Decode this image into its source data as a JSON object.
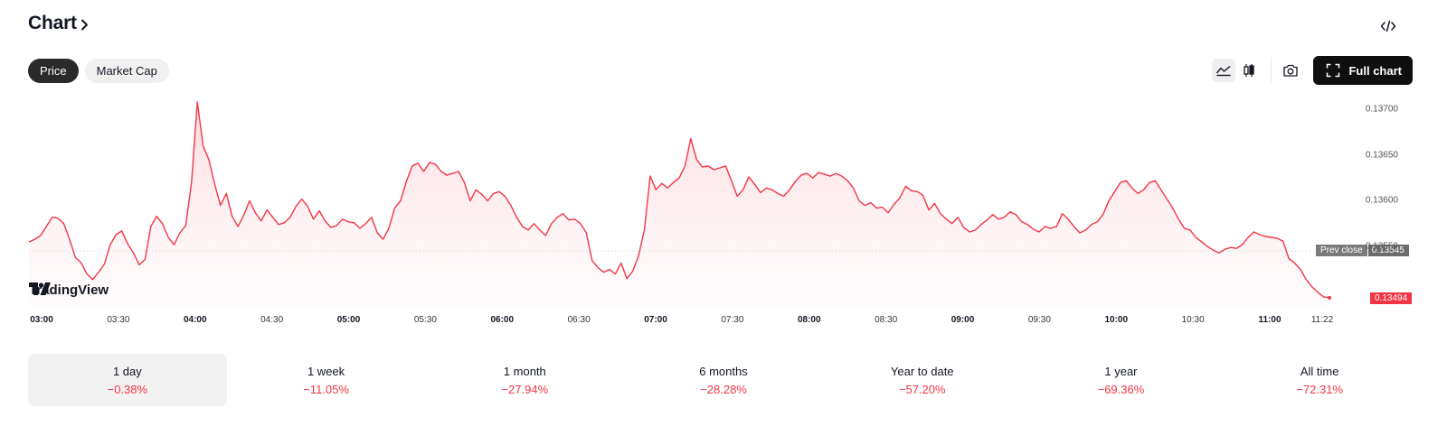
{
  "header": {
    "title": "Chart"
  },
  "tabs": [
    {
      "label": "Price",
      "active": true
    },
    {
      "label": "Market Cap",
      "active": false
    }
  ],
  "toolbar": {
    "full_chart_label": "Full chart",
    "icons": [
      "area-chart-icon",
      "candlestick-icon",
      "camera-icon",
      "fullscreen-icon",
      "embed-code-icon"
    ]
  },
  "colors": {
    "line": "#f23645",
    "fill_top": "#fdd6da",
    "accent_dark": "#0f0f0f",
    "negative": "#f23645"
  },
  "branding": {
    "logo_text": "TradingView"
  },
  "chart_data": {
    "type": "area",
    "y_ticks": [
      "0.13700",
      "0.13650",
      "0.13600",
      "0.13550"
    ],
    "ylim": [
      0.1349,
      0.13708
    ],
    "x_ticks": [
      {
        "label": "03:00",
        "bold": true
      },
      {
        "label": "03:30",
        "bold": false
      },
      {
        "label": "04:00",
        "bold": true
      },
      {
        "label": "04:30",
        "bold": false
      },
      {
        "label": "05:00",
        "bold": true
      },
      {
        "label": "05:30",
        "bold": false
      },
      {
        "label": "06:00",
        "bold": true
      },
      {
        "label": "06:30",
        "bold": false
      },
      {
        "label": "07:00",
        "bold": true
      },
      {
        "label": "07:30",
        "bold": false
      },
      {
        "label": "08:00",
        "bold": true
      },
      {
        "label": "08:30",
        "bold": false
      },
      {
        "label": "09:00",
        "bold": true
      },
      {
        "label": "09:30",
        "bold": false
      },
      {
        "label": "10:00",
        "bold": true
      },
      {
        "label": "10:30",
        "bold": false
      },
      {
        "label": "11:00",
        "bold": true
      },
      {
        "label": "11:22",
        "bold": false
      }
    ],
    "prev_close": {
      "label": "Prev close",
      "value": 0.13545,
      "display": "0.13545"
    },
    "last": {
      "value": 0.13494,
      "display": "0.13494"
    },
    "series": [
      {
        "values": [
          0.13555,
          0.13558,
          0.13562,
          0.13572,
          0.13582,
          0.13581,
          0.13575,
          0.13558,
          0.13538,
          0.13532,
          0.1352,
          0.13514,
          0.13522,
          0.13531,
          0.13552,
          0.13563,
          0.13567,
          0.13553,
          0.13543,
          0.1353,
          0.13536,
          0.13572,
          0.13583,
          0.13575,
          0.1356,
          0.13552,
          0.13565,
          0.13573,
          0.1362,
          0.13708,
          0.1366,
          0.13645,
          0.13618,
          0.13595,
          0.13608,
          0.13583,
          0.13572,
          0.13584,
          0.136,
          0.13587,
          0.13578,
          0.1359,
          0.13582,
          0.13574,
          0.13576,
          0.13582,
          0.13594,
          0.13602,
          0.13594,
          0.1358,
          0.13589,
          0.13578,
          0.13571,
          0.13573,
          0.1358,
          0.13577,
          0.13576,
          0.1357,
          0.13575,
          0.13582,
          0.13565,
          0.13558,
          0.1357,
          0.13592,
          0.136,
          0.13621,
          0.13638,
          0.13641,
          0.13632,
          0.13642,
          0.1364,
          0.13632,
          0.13628,
          0.1363,
          0.13632,
          0.1362,
          0.136,
          0.13612,
          0.13607,
          0.136,
          0.13608,
          0.1361,
          0.13605,
          0.13595,
          0.13582,
          0.13572,
          0.13568,
          0.13575,
          0.13568,
          0.13562,
          0.13575,
          0.13582,
          0.13586,
          0.13579,
          0.1358,
          0.13575,
          0.13565,
          0.13535,
          0.13527,
          0.13522,
          0.13525,
          0.1352,
          0.13532,
          0.13515,
          0.13523,
          0.1354,
          0.13568,
          0.13627,
          0.13612,
          0.13619,
          0.13614,
          0.1362,
          0.13625,
          0.13638,
          0.13668,
          0.13645,
          0.13637,
          0.13638,
          0.13634,
          0.13636,
          0.13638,
          0.13622,
          0.13605,
          0.13612,
          0.13626,
          0.13618,
          0.13609,
          0.13614,
          0.13612,
          0.13608,
          0.13605,
          0.13612,
          0.13621,
          0.13628,
          0.1363,
          0.13625,
          0.13631,
          0.13629,
          0.13627,
          0.1363,
          0.13627,
          0.13622,
          0.13614,
          0.136,
          0.13595,
          0.13598,
          0.13592,
          0.13593,
          0.13587,
          0.13596,
          0.13603,
          0.13616,
          0.13611,
          0.1361,
          0.13606,
          0.1359,
          0.13597,
          0.13586,
          0.1358,
          0.13575,
          0.13582,
          0.13571,
          0.13566,
          0.13568,
          0.13574,
          0.13579,
          0.13585,
          0.1358,
          0.13582,
          0.13588,
          0.13585,
          0.13577,
          0.13574,
          0.13569,
          0.13566,
          0.13572,
          0.1357,
          0.13572,
          0.13586,
          0.1358,
          0.13572,
          0.13565,
          0.13568,
          0.13574,
          0.13577,
          0.13585,
          0.136,
          0.1361,
          0.1362,
          0.13622,
          0.13614,
          0.13608,
          0.13612,
          0.1362,
          0.13622,
          0.13612,
          0.13602,
          0.13592,
          0.1358,
          0.1357,
          0.13568,
          0.1356,
          0.13555,
          0.1355,
          0.13546,
          0.13543,
          0.13547,
          0.13549,
          0.13548,
          0.13552,
          0.1356,
          0.13566,
          0.13563,
          0.13561,
          0.1356,
          0.13559,
          0.13556,
          0.13537,
          0.13532,
          0.13525,
          0.13514,
          0.13506,
          0.135,
          0.13495,
          0.13494
        ]
      }
    ]
  },
  "periods": [
    {
      "label": "1 day",
      "value": "−0.38%",
      "active": true
    },
    {
      "label": "1 week",
      "value": "−11.05%",
      "active": false
    },
    {
      "label": "1 month",
      "value": "−27.94%",
      "active": false
    },
    {
      "label": "6 months",
      "value": "−28.28%",
      "active": false
    },
    {
      "label": "Year to date",
      "value": "−57.20%",
      "active": false
    },
    {
      "label": "1 year",
      "value": "−69.36%",
      "active": false
    },
    {
      "label": "All time",
      "value": "−72.31%",
      "active": false
    }
  ]
}
